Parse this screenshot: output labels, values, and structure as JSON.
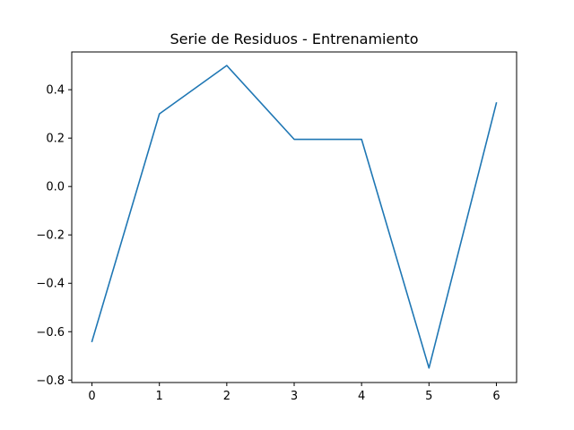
{
  "chart_data": {
    "type": "line",
    "title": "Serie de Residuos - Entrenamiento",
    "xlabel": "",
    "ylabel": "",
    "x": [
      0,
      1,
      2,
      3,
      4,
      5,
      6
    ],
    "series": [
      {
        "values": [
          -0.64,
          0.3,
          0.5,
          0.195,
          0.195,
          -0.75,
          0.345
        ],
        "color": "#1f77b4"
      }
    ],
    "xlim": [
      -0.3,
      6.3
    ],
    "ylim": [
      -0.81,
      0.556
    ],
    "xticks": [
      0,
      1,
      2,
      3,
      4,
      5,
      6
    ],
    "xtick_labels": [
      "0",
      "1",
      "2",
      "3",
      "4",
      "5",
      "6"
    ],
    "yticks": [
      -0.8,
      -0.6,
      -0.4,
      -0.2,
      0.0,
      0.2,
      0.4
    ],
    "ytick_labels": [
      "−0.8",
      "−0.6",
      "−0.4",
      "−0.2",
      "0.0",
      "0.2",
      "0.4"
    ],
    "grid": false,
    "legend": false
  }
}
